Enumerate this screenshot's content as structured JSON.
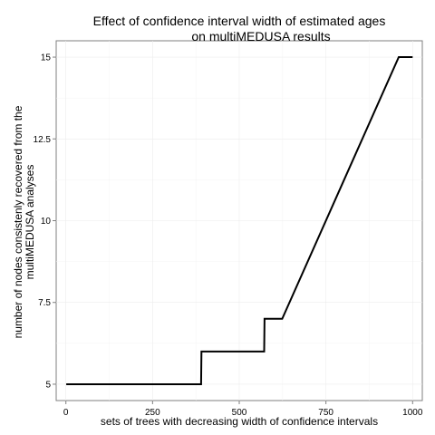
{
  "chart_data": {
    "type": "line",
    "title_lines": [
      "Effect of confidence interval width of estimated ages",
      "on multiMEDUSA results"
    ],
    "xlabel": "sets of trees with decreasing width of confidence intervals",
    "ylabel_lines": [
      "number of nodes consistenly recovered from the",
      "multiMEDUSA analyses"
    ],
    "xlim": [
      -28,
      1028
    ],
    "ylim": [
      4.5,
      15.5
    ],
    "x_ticks": [
      0,
      250,
      500,
      750,
      1000
    ],
    "x_tick_labels": [
      "0",
      "250",
      "500",
      "750",
      "1000"
    ],
    "y_ticks": [
      5,
      7.5,
      10,
      12.5,
      15
    ],
    "y_tick_labels": [
      "5",
      "7.5",
      "10",
      "12.5",
      "15"
    ],
    "grid": true,
    "line_color": "#000000",
    "series": [
      {
        "x": [
          1,
          390,
          391,
          572,
          573,
          624,
          960,
          1000
        ],
        "y": [
          5,
          5,
          6,
          6,
          7,
          7,
          15,
          15
        ]
      }
    ]
  }
}
